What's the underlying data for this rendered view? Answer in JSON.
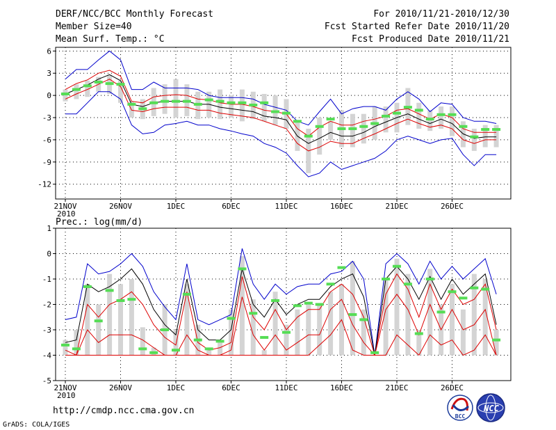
{
  "header": {
    "title": "DERF/NCC/BCC Monthly Forecast",
    "member_size": "Member Size=40",
    "temp_label": "Mean Surf. Temp.: °C",
    "forecast_period": "For 2010/11/21-2010/12/30",
    "started_refer": "Fcst Started Refer Date 2010/11/20",
    "produced": "Fcst Produced Date 2010/11/21"
  },
  "footer": {
    "url": "http://cmdp.ncc.cma.gov.cn",
    "grads": "GrADS: COLA/IGES",
    "logo_bcc": "BCC",
    "logo_ncc": "NCC"
  },
  "colors": {
    "envelope": "#0000cc",
    "spread": "#dd0000",
    "mean": "#000000",
    "marker": "#55dd55",
    "bar": "#d4d4d4"
  },
  "chart_data": [
    {
      "type": "line",
      "name": "temperature",
      "title": "Mean Surf. Temp.: °C",
      "xlabel": "",
      "ylabel": "",
      "ylim": [
        -14,
        6.5
      ],
      "yticks": [
        6,
        3,
        0,
        -3,
        -6,
        -9,
        -12
      ],
      "grid": true,
      "xtick_days": [
        0,
        5,
        10,
        15,
        20,
        25,
        30,
        35
      ],
      "xtick_labels": [
        "21NOV",
        "26NOV",
        "1DEC",
        "6DEC",
        "11DEC",
        "16DEC",
        "21DEC",
        "26DEC"
      ],
      "year_label": "2010",
      "days": [
        0,
        1,
        2,
        3,
        4,
        5,
        6,
        7,
        8,
        9,
        10,
        11,
        12,
        13,
        14,
        15,
        16,
        17,
        18,
        19,
        20,
        21,
        22,
        23,
        24,
        25,
        26,
        27,
        28,
        29,
        30,
        31,
        32,
        33,
        34,
        35,
        36,
        37,
        38,
        39
      ],
      "series": [
        {
          "name": "max",
          "color": "#0000cc",
          "values": [
            2.2,
            3.5,
            3.5,
            4.8,
            6.0,
            4.8,
            0.8,
            0.8,
            1.8,
            1.0,
            1.0,
            1.0,
            0.8,
            0.0,
            -0.3,
            -0.3,
            -0.3,
            -0.5,
            -1.2,
            -1.6,
            -2.0,
            -3.5,
            -4.0,
            -2.2,
            -0.5,
            -2.5,
            -1.8,
            -1.5,
            -1.5,
            -2.0,
            -0.5,
            0.5,
            -0.5,
            -2.2,
            -1.0,
            -1.2,
            -3.0,
            -3.5,
            -3.5,
            -3.8
          ]
        },
        {
          "name": "upper",
          "color": "#dd0000",
          "values": [
            0.8,
            1.6,
            2.1,
            3.0,
            3.4,
            2.6,
            -0.8,
            -1.0,
            -0.2,
            0.0,
            0.1,
            0.0,
            -0.5,
            -0.6,
            -1.0,
            -1.2,
            -1.2,
            -1.5,
            -2.0,
            -2.2,
            -2.5,
            -4.5,
            -5.5,
            -4.3,
            -3.5,
            -4.0,
            -4.0,
            -3.5,
            -3.2,
            -2.8,
            -2.0,
            -1.8,
            -2.5,
            -3.2,
            -2.5,
            -3.0,
            -4.5,
            -5.0,
            -5.0,
            -5.0
          ]
        },
        {
          "name": "mean",
          "color": "#000000",
          "values": [
            0.2,
            0.8,
            1.4,
            2.2,
            2.8,
            2.0,
            -1.2,
            -1.5,
            -1.0,
            -0.8,
            -0.8,
            -0.8,
            -1.2,
            -1.2,
            -1.6,
            -1.8,
            -2.0,
            -2.2,
            -2.8,
            -3.0,
            -3.3,
            -5.5,
            -6.5,
            -5.8,
            -5.0,
            -5.5,
            -5.5,
            -5.0,
            -4.2,
            -3.6,
            -3.0,
            -2.5,
            -3.2,
            -3.8,
            -3.2,
            -3.8,
            -5.2,
            -5.8,
            -5.6,
            -5.6
          ]
        },
        {
          "name": "lower",
          "color": "#dd0000",
          "values": [
            -0.5,
            0.2,
            0.8,
            1.5,
            2.2,
            1.2,
            -2.0,
            -2.2,
            -1.8,
            -1.6,
            -1.6,
            -1.6,
            -2.0,
            -2.0,
            -2.4,
            -2.6,
            -2.8,
            -3.0,
            -3.5,
            -4.0,
            -4.5,
            -6.5,
            -7.5,
            -7.0,
            -6.2,
            -6.5,
            -6.5,
            -5.8,
            -5.2,
            -4.5,
            -3.8,
            -3.2,
            -3.8,
            -4.3,
            -4.0,
            -4.5,
            -6.0,
            -6.5,
            -6.0,
            -6.0
          ]
        },
        {
          "name": "min",
          "color": "#0000cc",
          "values": [
            -2.5,
            -2.5,
            -1.0,
            0.5,
            0.5,
            -0.5,
            -4.0,
            -5.2,
            -5.0,
            -4.0,
            -3.8,
            -3.5,
            -4.0,
            -4.0,
            -4.5,
            -4.8,
            -5.2,
            -5.5,
            -6.5,
            -7.0,
            -7.8,
            -9.5,
            -11.0,
            -10.5,
            -9.0,
            -10.0,
            -9.5,
            -9.0,
            -8.5,
            -7.5,
            -6.0,
            -5.5,
            -6.0,
            -6.5,
            -6.0,
            -5.8,
            -8.0,
            -9.5,
            -8.0,
            -8.0
          ]
        }
      ],
      "bars": {
        "low": [
          -0.8,
          -0.5,
          -0.2,
          0.5,
          0.2,
          -1.0,
          -3.0,
          -3.2,
          -2.8,
          -2.5,
          -3.0,
          -2.8,
          -3.2,
          -3.0,
          -3.2,
          -3.0,
          -3.5,
          -3.2,
          -3.5,
          -4.0,
          -4.5,
          -7.5,
          -10.5,
          -8.0,
          -6.0,
          -7.0,
          -7.0,
          -6.5,
          -6.0,
          -5.0,
          -5.0,
          -4.0,
          -4.5,
          -4.8,
          -4.5,
          -5.5,
          -7.0,
          -7.5,
          -7.0,
          -7.0
        ],
        "high": [
          0.8,
          1.5,
          2.0,
          2.5,
          2.8,
          2.0,
          -0.8,
          -0.5,
          1.0,
          1.5,
          2.2,
          1.5,
          0.5,
          0.5,
          0.8,
          0.0,
          0.8,
          0.5,
          0.2,
          0.0,
          -0.5,
          -3.5,
          -4.5,
          -3.0,
          -3.5,
          -2.0,
          -2.5,
          -2.5,
          -1.5,
          -1.5,
          -1.0,
          1.0,
          -1.0,
          -2.0,
          -1.5,
          -1.5,
          -3.5,
          -4.5,
          -4.0,
          -4.0
        ]
      },
      "markers": [
        0.2,
        0.8,
        1.3,
        1.8,
        1.6,
        1.5,
        -1.2,
        -1.8,
        -1.0,
        -0.8,
        -0.8,
        -0.8,
        -1.2,
        -0.6,
        -0.8,
        -1.0,
        -1.0,
        -1.3,
        -1.0,
        -2.2,
        -2.4,
        -3.5,
        -5.5,
        -4.2,
        -3.2,
        -4.5,
        -4.5,
        -4.2,
        -3.8,
        -2.8,
        -2.4,
        -1.6,
        -2.0,
        -3.2,
        -2.6,
        -2.6,
        -4.2,
        -5.6,
        -4.6,
        -4.6
      ]
    },
    {
      "type": "line",
      "name": "precipitation",
      "title": "Prec.: log(mm/d)",
      "xlabel": "",
      "ylabel": "",
      "ylim": [
        -5,
        1
      ],
      "yticks": [
        1,
        0,
        -1,
        -2,
        -3,
        -4,
        -5
      ],
      "grid": true,
      "xtick_days": [
        0,
        5,
        10,
        15,
        20,
        25,
        30,
        35
      ],
      "xtick_labels": [
        "21NOV",
        "26NOV",
        "1DEC",
        "6DEC",
        "11DEC",
        "16DEC",
        "21DEC",
        "26DEC"
      ],
      "year_label": "2010",
      "days": [
        0,
        1,
        2,
        3,
        4,
        5,
        6,
        7,
        8,
        9,
        10,
        11,
        12,
        13,
        14,
        15,
        16,
        17,
        18,
        19,
        20,
        21,
        22,
        23,
        24,
        25,
        26,
        27,
        28,
        29,
        30,
        31,
        32,
        33,
        34,
        35,
        36,
        37,
        38,
        39
      ],
      "series": [
        {
          "name": "max",
          "color": "#0000cc",
          "values": [
            -2.6,
            -2.5,
            -0.4,
            -0.8,
            -0.7,
            -0.4,
            0.0,
            -0.5,
            -1.5,
            -2.1,
            -2.6,
            -0.4,
            -2.6,
            -2.8,
            -2.6,
            -2.4,
            0.2,
            -1.2,
            -1.8,
            -1.2,
            -1.6,
            -1.3,
            -1.2,
            -1.2,
            -0.8,
            -0.7,
            -0.3,
            -1.0,
            -4.0,
            -0.4,
            0.0,
            -0.4,
            -1.2,
            -0.3,
            -1.0,
            -0.5,
            -1.0,
            -0.6,
            -0.2,
            -1.6
          ]
        },
        {
          "name": "upper",
          "color": "#dd0000",
          "values": [
            -3.8,
            -4.0,
            -2.0,
            -2.5,
            -2.0,
            -1.8,
            -1.5,
            -2.0,
            -2.8,
            -3.3,
            -3.6,
            -1.5,
            -3.5,
            -3.8,
            -3.7,
            -3.5,
            -0.9,
            -2.5,
            -3.0,
            -2.2,
            -3.0,
            -2.5,
            -2.2,
            -2.2,
            -1.5,
            -1.2,
            -1.6,
            -2.5,
            -4.0,
            -1.6,
            -0.8,
            -1.4,
            -2.5,
            -1.2,
            -2.2,
            -1.4,
            -2.0,
            -1.8,
            -1.2,
            -3.0
          ]
        },
        {
          "name": "mean",
          "color": "#000000",
          "values": [
            -3.5,
            -3.4,
            -1.2,
            -1.5,
            -1.3,
            -1.0,
            -0.6,
            -1.2,
            -2.2,
            -2.8,
            -3.2,
            -1.0,
            -3.0,
            -3.4,
            -3.4,
            -3.0,
            -0.6,
            -2.0,
            -2.5,
            -1.8,
            -2.4,
            -2.0,
            -1.8,
            -1.8,
            -1.3,
            -1.0,
            -0.8,
            -1.7,
            -4.0,
            -1.0,
            -0.5,
            -1.0,
            -1.8,
            -0.9,
            -1.8,
            -1.0,
            -1.6,
            -1.2,
            -0.8,
            -2.8
          ]
        },
        {
          "name": "lower",
          "color": "#dd0000",
          "values": [
            -4.0,
            -4.0,
            -3.0,
            -3.5,
            -3.2,
            -3.2,
            -3.2,
            -3.4,
            -3.7,
            -4.0,
            -4.0,
            -3.2,
            -3.8,
            -4.0,
            -4.0,
            -3.8,
            -1.7,
            -3.2,
            -3.8,
            -3.2,
            -3.8,
            -3.5,
            -3.2,
            -3.2,
            -2.2,
            -1.8,
            -2.8,
            -3.5,
            -4.0,
            -2.2,
            -1.6,
            -2.2,
            -3.2,
            -2.0,
            -3.0,
            -2.2,
            -3.0,
            -2.8,
            -2.2,
            -4.0
          ]
        },
        {
          "name": "min",
          "color": "#dd0000",
          "values": [
            -4.0,
            -4.0,
            -4.0,
            -4.0,
            -4.0,
            -4.0,
            -4.0,
            -4.0,
            -4.0,
            -4.0,
            -4.0,
            -4.0,
            -4.0,
            -4.0,
            -4.0,
            -4.0,
            -4.0,
            -4.0,
            -4.0,
            -4.0,
            -4.0,
            -4.0,
            -4.0,
            -3.6,
            -3.2,
            -2.6,
            -3.8,
            -4.0,
            -4.0,
            -4.0,
            -3.2,
            -3.6,
            -4.0,
            -3.2,
            -3.6,
            -3.4,
            -4.0,
            -3.8,
            -3.2,
            -4.0
          ]
        }
      ],
      "bars": {
        "low": [
          -4.0,
          -4.0,
          -4.0,
          -4.0,
          -4.0,
          -4.0,
          -4.0,
          -4.0,
          -4.0,
          -4.0,
          -4.0,
          -4.0,
          -4.0,
          -4.0,
          -4.0,
          -4.0,
          -4.0,
          -4.0,
          -4.0,
          -4.0,
          -4.0,
          -4.0,
          -4.0,
          -4.0,
          -4.0,
          -4.0,
          -4.0,
          -4.0,
          -4.0,
          -4.0,
          -4.0,
          -4.0,
          -4.0,
          -4.0,
          -4.0,
          -4.0,
          -4.0,
          -4.0,
          -4.0,
          -4.0
        ],
        "high": [
          -3.4,
          -3.0,
          -1.2,
          -2.0,
          -0.8,
          -1.2,
          -1.0,
          -2.9,
          -3.7,
          -2.0,
          -3.0,
          -1.2,
          -2.8,
          -3.7,
          -3.5,
          -2.2,
          -0.1,
          -1.8,
          -3.8,
          -1.5,
          -2.8,
          -2.2,
          -2.0,
          -2.0,
          -1.5,
          -1.2,
          -0.3,
          -2.2,
          -4.0,
          -1.0,
          -0.2,
          -0.8,
          -3.0,
          -0.6,
          -2.0,
          -1.2,
          -2.2,
          -0.8,
          -1.0,
          -3.0
        ]
      },
      "markers": [
        -3.6,
        -3.75,
        -1.3,
        -2.65,
        -1.45,
        -1.85,
        -1.8,
        -3.75,
        -3.9,
        -3.0,
        -3.8,
        -1.6,
        -3.4,
        -3.75,
        -3.45,
        -2.55,
        -0.6,
        -2.35,
        -3.3,
        -1.85,
        -3.1,
        -2.05,
        -1.95,
        -2.0,
        -1.2,
        -0.55,
        -2.4,
        -2.6,
        -3.9,
        -1.0,
        -0.5,
        -1.2,
        -3.15,
        -1.0,
        -2.3,
        -1.5,
        -1.75,
        -1.35,
        -1.4,
        -3.4
      ]
    }
  ]
}
